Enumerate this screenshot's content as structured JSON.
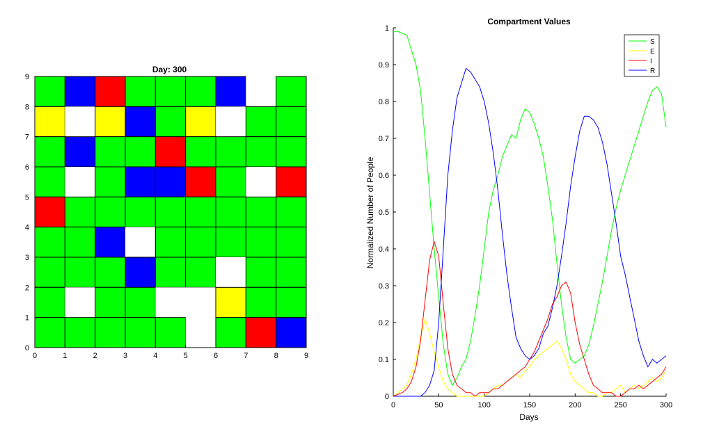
{
  "colors": {
    "green": "#00ff00",
    "blue": "#0000ff",
    "red": "#ff0000",
    "yellow": "#ffff00",
    "white": "#ffffff"
  },
  "chart_data": [
    {
      "type": "heatmap",
      "title": "Day: 300",
      "xlim": [
        0,
        9
      ],
      "ylim": [
        0,
        9
      ],
      "x_ticks": [
        "0",
        "1",
        "2",
        "3",
        "4",
        "5",
        "6",
        "7",
        "8",
        "9"
      ],
      "y_ticks": [
        "0",
        "1",
        "2",
        "3",
        "4",
        "5",
        "6",
        "7",
        "8",
        "9"
      ],
      "color_key": {
        "G": "green",
        "B": "blue",
        "R": "red",
        "Y": "yellow",
        "W": "white"
      },
      "rows_top_to_bottom": [
        [
          "G",
          "B",
          "R",
          "G",
          "G",
          "G",
          "B",
          "W",
          "G"
        ],
        [
          "Y",
          "W",
          "Y",
          "B",
          "G",
          "Y",
          "W",
          "G",
          "G"
        ],
        [
          "G",
          "B",
          "G",
          "G",
          "R",
          "G",
          "G",
          "G",
          "G"
        ],
        [
          "G",
          "W",
          "G",
          "B",
          "B",
          "R",
          "G",
          "W",
          "R"
        ],
        [
          "R",
          "G",
          "G",
          "G",
          "G",
          "G",
          "G",
          "G",
          "G"
        ],
        [
          "G",
          "G",
          "B",
          "W",
          "G",
          "G",
          "G",
          "G",
          "G"
        ],
        [
          "G",
          "G",
          "G",
          "B",
          "G",
          "G",
          "W",
          "G",
          "G"
        ],
        [
          "G",
          "W",
          "G",
          "G",
          "W",
          "W",
          "Y",
          "G",
          "G"
        ],
        [
          "G",
          "G",
          "G",
          "G",
          "G",
          "W",
          "G",
          "R",
          "B"
        ]
      ]
    },
    {
      "type": "line",
      "title": "Compartment Values",
      "xlabel": "Days",
      "ylabel": "Normalized Number of People",
      "xlim": [
        0,
        300
      ],
      "ylim": [
        0,
        1
      ],
      "x_ticks": [
        "0",
        "50",
        "100",
        "150",
        "200",
        "250",
        "300"
      ],
      "y_ticks": [
        "0",
        "0.1",
        "0.2",
        "0.3",
        "0.4",
        "0.5",
        "0.6",
        "0.7",
        "0.8",
        "0.9",
        "1"
      ],
      "legend_position": "top-right",
      "x": [
        0,
        5,
        10,
        15,
        20,
        25,
        30,
        35,
        40,
        45,
        50,
        55,
        60,
        65,
        70,
        75,
        80,
        85,
        90,
        95,
        100,
        105,
        110,
        115,
        120,
        125,
        130,
        135,
        140,
        145,
        150,
        155,
        160,
        165,
        170,
        175,
        180,
        185,
        190,
        195,
        200,
        205,
        210,
        215,
        220,
        225,
        230,
        235,
        240,
        245,
        250,
        255,
        260,
        265,
        270,
        275,
        280,
        285,
        290,
        295,
        300
      ],
      "series": [
        {
          "name": "S",
          "color": "#00ff00",
          "values": [
            0.99,
            0.99,
            0.985,
            0.98,
            0.94,
            0.9,
            0.83,
            0.7,
            0.55,
            0.4,
            0.27,
            0.14,
            0.06,
            0.03,
            0.05,
            0.08,
            0.1,
            0.15,
            0.22,
            0.3,
            0.4,
            0.5,
            0.56,
            0.6,
            0.65,
            0.68,
            0.71,
            0.7,
            0.75,
            0.78,
            0.77,
            0.74,
            0.7,
            0.65,
            0.57,
            0.48,
            0.36,
            0.25,
            0.16,
            0.1,
            0.09,
            0.1,
            0.11,
            0.14,
            0.19,
            0.25,
            0.31,
            0.38,
            0.45,
            0.51,
            0.56,
            0.6,
            0.64,
            0.68,
            0.72,
            0.76,
            0.8,
            0.83,
            0.84,
            0.82,
            0.73
          ]
        },
        {
          "name": "E",
          "color": "#ffff00",
          "values": [
            0,
            0.01,
            0.02,
            0.03,
            0.06,
            0.1,
            0.16,
            0.21,
            0.17,
            0.12,
            0.08,
            0.04,
            0.02,
            0.01,
            0,
            0,
            0,
            0,
            0,
            0,
            0,
            0.01,
            0.02,
            0.03,
            0.03,
            0.04,
            0.05,
            0.06,
            0.05,
            0.07,
            0.08,
            0.1,
            0.11,
            0.12,
            0.13,
            0.14,
            0.15,
            0.13,
            0.1,
            0.06,
            0.04,
            0.03,
            0.02,
            0.01,
            0.01,
            0,
            0,
            0.01,
            0.01,
            0.02,
            0.03,
            0.01,
            0.02,
            0.03,
            0.02,
            0.03,
            0.04,
            0.05,
            0.04,
            0.05,
            0.07
          ]
        },
        {
          "name": "I",
          "color": "#ff0000",
          "values": [
            0,
            0.005,
            0.01,
            0.02,
            0.04,
            0.08,
            0.15,
            0.26,
            0.37,
            0.42,
            0.38,
            0.25,
            0.13,
            0.06,
            0.03,
            0.02,
            0.01,
            0.01,
            0,
            0.01,
            0.01,
            0.01,
            0.02,
            0.02,
            0.03,
            0.04,
            0.05,
            0.06,
            0.07,
            0.08,
            0.1,
            0.12,
            0.15,
            0.18,
            0.21,
            0.25,
            0.27,
            0.3,
            0.31,
            0.28,
            0.2,
            0.14,
            0.1,
            0.06,
            0.03,
            0.02,
            0.01,
            0.01,
            0.01,
            0,
            0,
            0.01,
            0.02,
            0.02,
            0.03,
            0.02,
            0.03,
            0.04,
            0.05,
            0.06,
            0.08
          ]
        },
        {
          "name": "R",
          "color": "#0000ff",
          "values": [
            0,
            0,
            0,
            0,
            0,
            0,
            0,
            0.01,
            0.03,
            0.07,
            0.2,
            0.4,
            0.6,
            0.72,
            0.81,
            0.85,
            0.89,
            0.88,
            0.86,
            0.84,
            0.8,
            0.74,
            0.66,
            0.56,
            0.44,
            0.33,
            0.24,
            0.16,
            0.13,
            0.11,
            0.1,
            0.11,
            0.13,
            0.17,
            0.19,
            0.24,
            0.3,
            0.38,
            0.47,
            0.57,
            0.65,
            0.72,
            0.76,
            0.76,
            0.75,
            0.73,
            0.69,
            0.63,
            0.55,
            0.47,
            0.38,
            0.33,
            0.27,
            0.21,
            0.15,
            0.11,
            0.08,
            0.1,
            0.09,
            0.1,
            0.11
          ]
        }
      ]
    }
  ]
}
